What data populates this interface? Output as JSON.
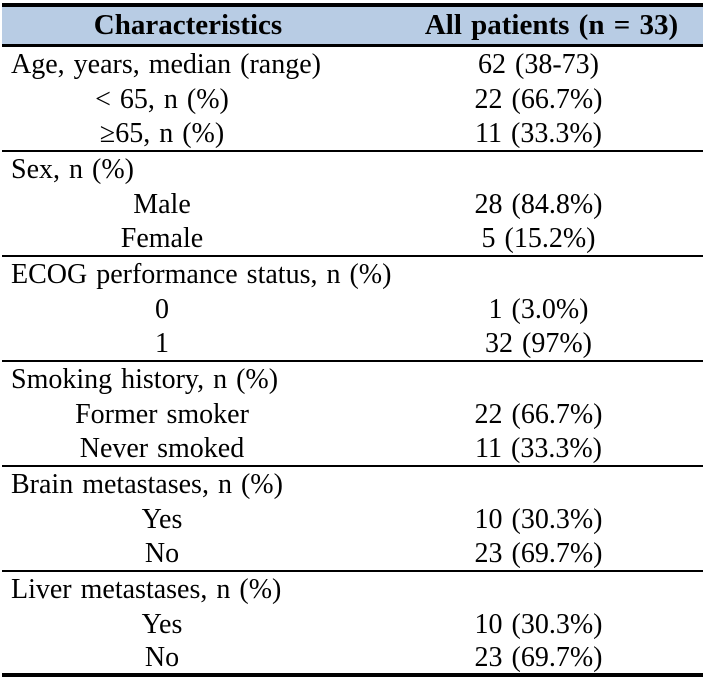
{
  "colors": {
    "header_background": "#b8cce4",
    "border": "#000000",
    "text": "#000000"
  },
  "table": {
    "columns": {
      "characteristics": "Characteristics",
      "all_patients": "All patients (n = 33)"
    },
    "rows": [
      {
        "label": "Age, years, median (range)",
        "value": "62 (38-73)"
      },
      {
        "label": "< 65, n (%)",
        "value": "22 (66.7%)"
      },
      {
        "label": "≥65, n (%)",
        "value": "11 (33.3%)"
      },
      {
        "label": "Sex, n (%)",
        "value": ""
      },
      {
        "label": "Male",
        "value": "28 (84.8%)"
      },
      {
        "label": "Female",
        "value": "5 (15.2%)"
      },
      {
        "label": "ECOG performance status, n (%)",
        "value": ""
      },
      {
        "label": "0",
        "value": "1 (3.0%)"
      },
      {
        "label": "1",
        "value": "32 (97%)"
      },
      {
        "label": "Smoking history, n (%)",
        "value": ""
      },
      {
        "label": "Former smoker",
        "value": "22 (66.7%)"
      },
      {
        "label": "Never smoked",
        "value": "11 (33.3%)"
      },
      {
        "label": "Brain metastases, n (%)",
        "value": ""
      },
      {
        "label": "Yes",
        "value": "10 (30.3%)"
      },
      {
        "label": "No",
        "value": "23 (69.7%)"
      },
      {
        "label": "Liver metastases, n (%)",
        "value": ""
      },
      {
        "label": "Yes",
        "value": "10 (30.3%)"
      },
      {
        "label": "No",
        "value": "23 (69.7%)"
      }
    ]
  }
}
